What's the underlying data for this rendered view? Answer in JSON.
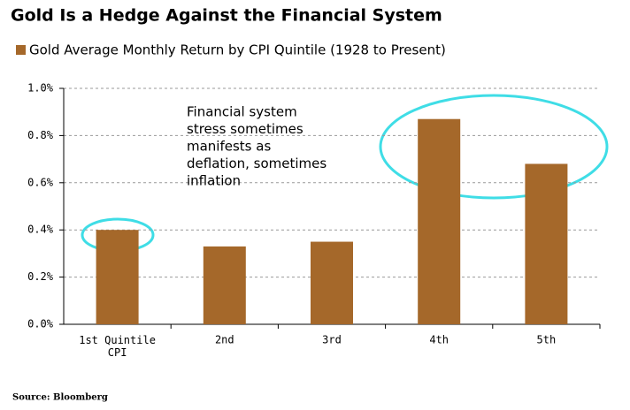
{
  "chart_data": {
    "type": "bar",
    "title": "Gold Is a Hedge Against the Financial System",
    "categories": [
      "1st Quintile CPI",
      "2nd",
      "3rd",
      "4th",
      "5th"
    ],
    "series": [
      {
        "name": "Gold Average Monthly Return by CPI Quintile (1928 to Present)",
        "color": "#a5682a",
        "values": [
          0.4,
          0.33,
          0.35,
          0.87,
          0.68
        ]
      }
    ],
    "ylim": [
      0,
      1.0
    ],
    "yticks": [
      {
        "value": 0,
        "label": "0.0%"
      },
      {
        "value": 0.2,
        "label": "0.2%"
      },
      {
        "value": 0.4,
        "label": "0.4%"
      },
      {
        "value": 0.6,
        "label": "0.6%"
      },
      {
        "value": 0.8,
        "label": "0.8%"
      },
      {
        "value": 1.0,
        "label": "1.0%"
      }
    ],
    "grid": true,
    "annotation": [
      "Financial system",
      "stress sometimes",
      "manifests as",
      "deflation, sometimes",
      "inflation"
    ],
    "source": "Source: Bloomberg"
  }
}
